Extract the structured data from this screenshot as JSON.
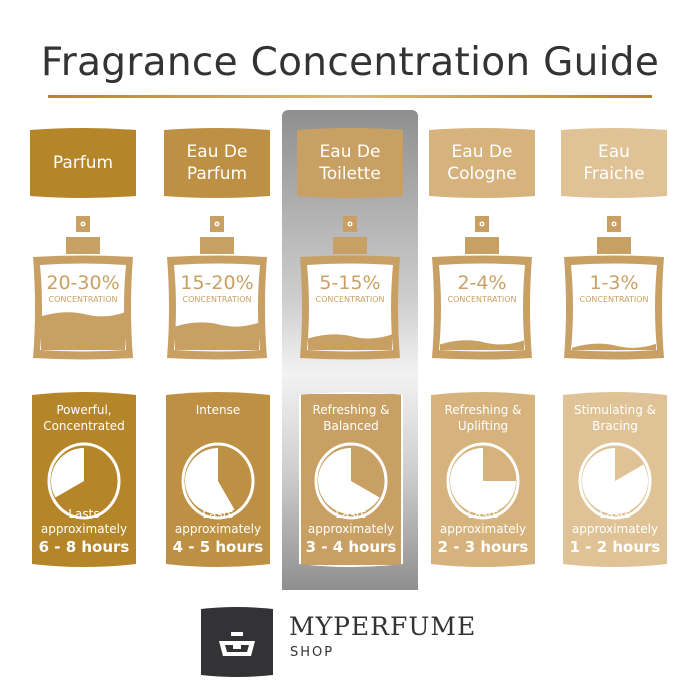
{
  "title": "Fragrance Concentration Guide",
  "colors": {
    "title": "#333336",
    "bottle": "#c9a064",
    "logo": "#333336"
  },
  "columns": [
    {
      "name": "Parfum",
      "name_line2": "",
      "color": "#b5852a",
      "percent": "20-30%",
      "concentration_label": "CONCENTRATION",
      "liquid_level": 0.42,
      "description": "Powerful,",
      "description_line2": "Concentrated",
      "lasts_line1": "Lasts",
      "lasts_line2": "approximately",
      "hours": "6 - 8 hours",
      "clock_wedge_hours": 8,
      "highlighted": false
    },
    {
      "name": "Eau De",
      "name_line2": "Parfum",
      "color": "#be9044",
      "percent": "15-20%",
      "concentration_label": "CONCENTRATION",
      "liquid_level": 0.3,
      "description": "Intense",
      "description_line2": "",
      "lasts_line1": "Lasts",
      "lasts_line2": "approximately",
      "hours": "4 - 5 hours",
      "clock_wedge_hours": 5,
      "highlighted": false
    },
    {
      "name": "Eau De",
      "name_line2": "Toilette",
      "color": "#c9a064",
      "percent": "5-15%",
      "concentration_label": "CONCENTRATION",
      "liquid_level": 0.16,
      "description": "Refreshing &",
      "description_line2": "Balanced",
      "lasts_line1": "Lasts",
      "lasts_line2": "approximately",
      "hours": "3 - 4 hours",
      "clock_wedge_hours": 4,
      "highlighted": true
    },
    {
      "name": "Eau De",
      "name_line2": "Cologne",
      "color": "#d6b37d",
      "percent": "2-4%",
      "concentration_label": "CONCENTRATION",
      "liquid_level": 0.09,
      "description": "Refreshing &",
      "description_line2": "Uplifting",
      "lasts_line1": "Lasts",
      "lasts_line2": "approximately",
      "hours": "2 - 3 hours",
      "clock_wedge_hours": 3,
      "highlighted": false
    },
    {
      "name": "Eau",
      "name_line2": "Fraiche",
      "color": "#dfc396",
      "percent": "1-3%",
      "concentration_label": "CONCENTRATION",
      "liquid_level": 0.05,
      "description": "Stimulating &",
      "description_line2": "Bracing",
      "lasts_line1": "Lasts",
      "lasts_line2": "approximately",
      "hours": "1 - 2 hours",
      "clock_wedge_hours": 2,
      "highlighted": false
    }
  ],
  "brand": {
    "name": "MYPERFUME",
    "sub": "SHOP",
    "logo_icon": "perfume-bottle-logo-icon"
  }
}
